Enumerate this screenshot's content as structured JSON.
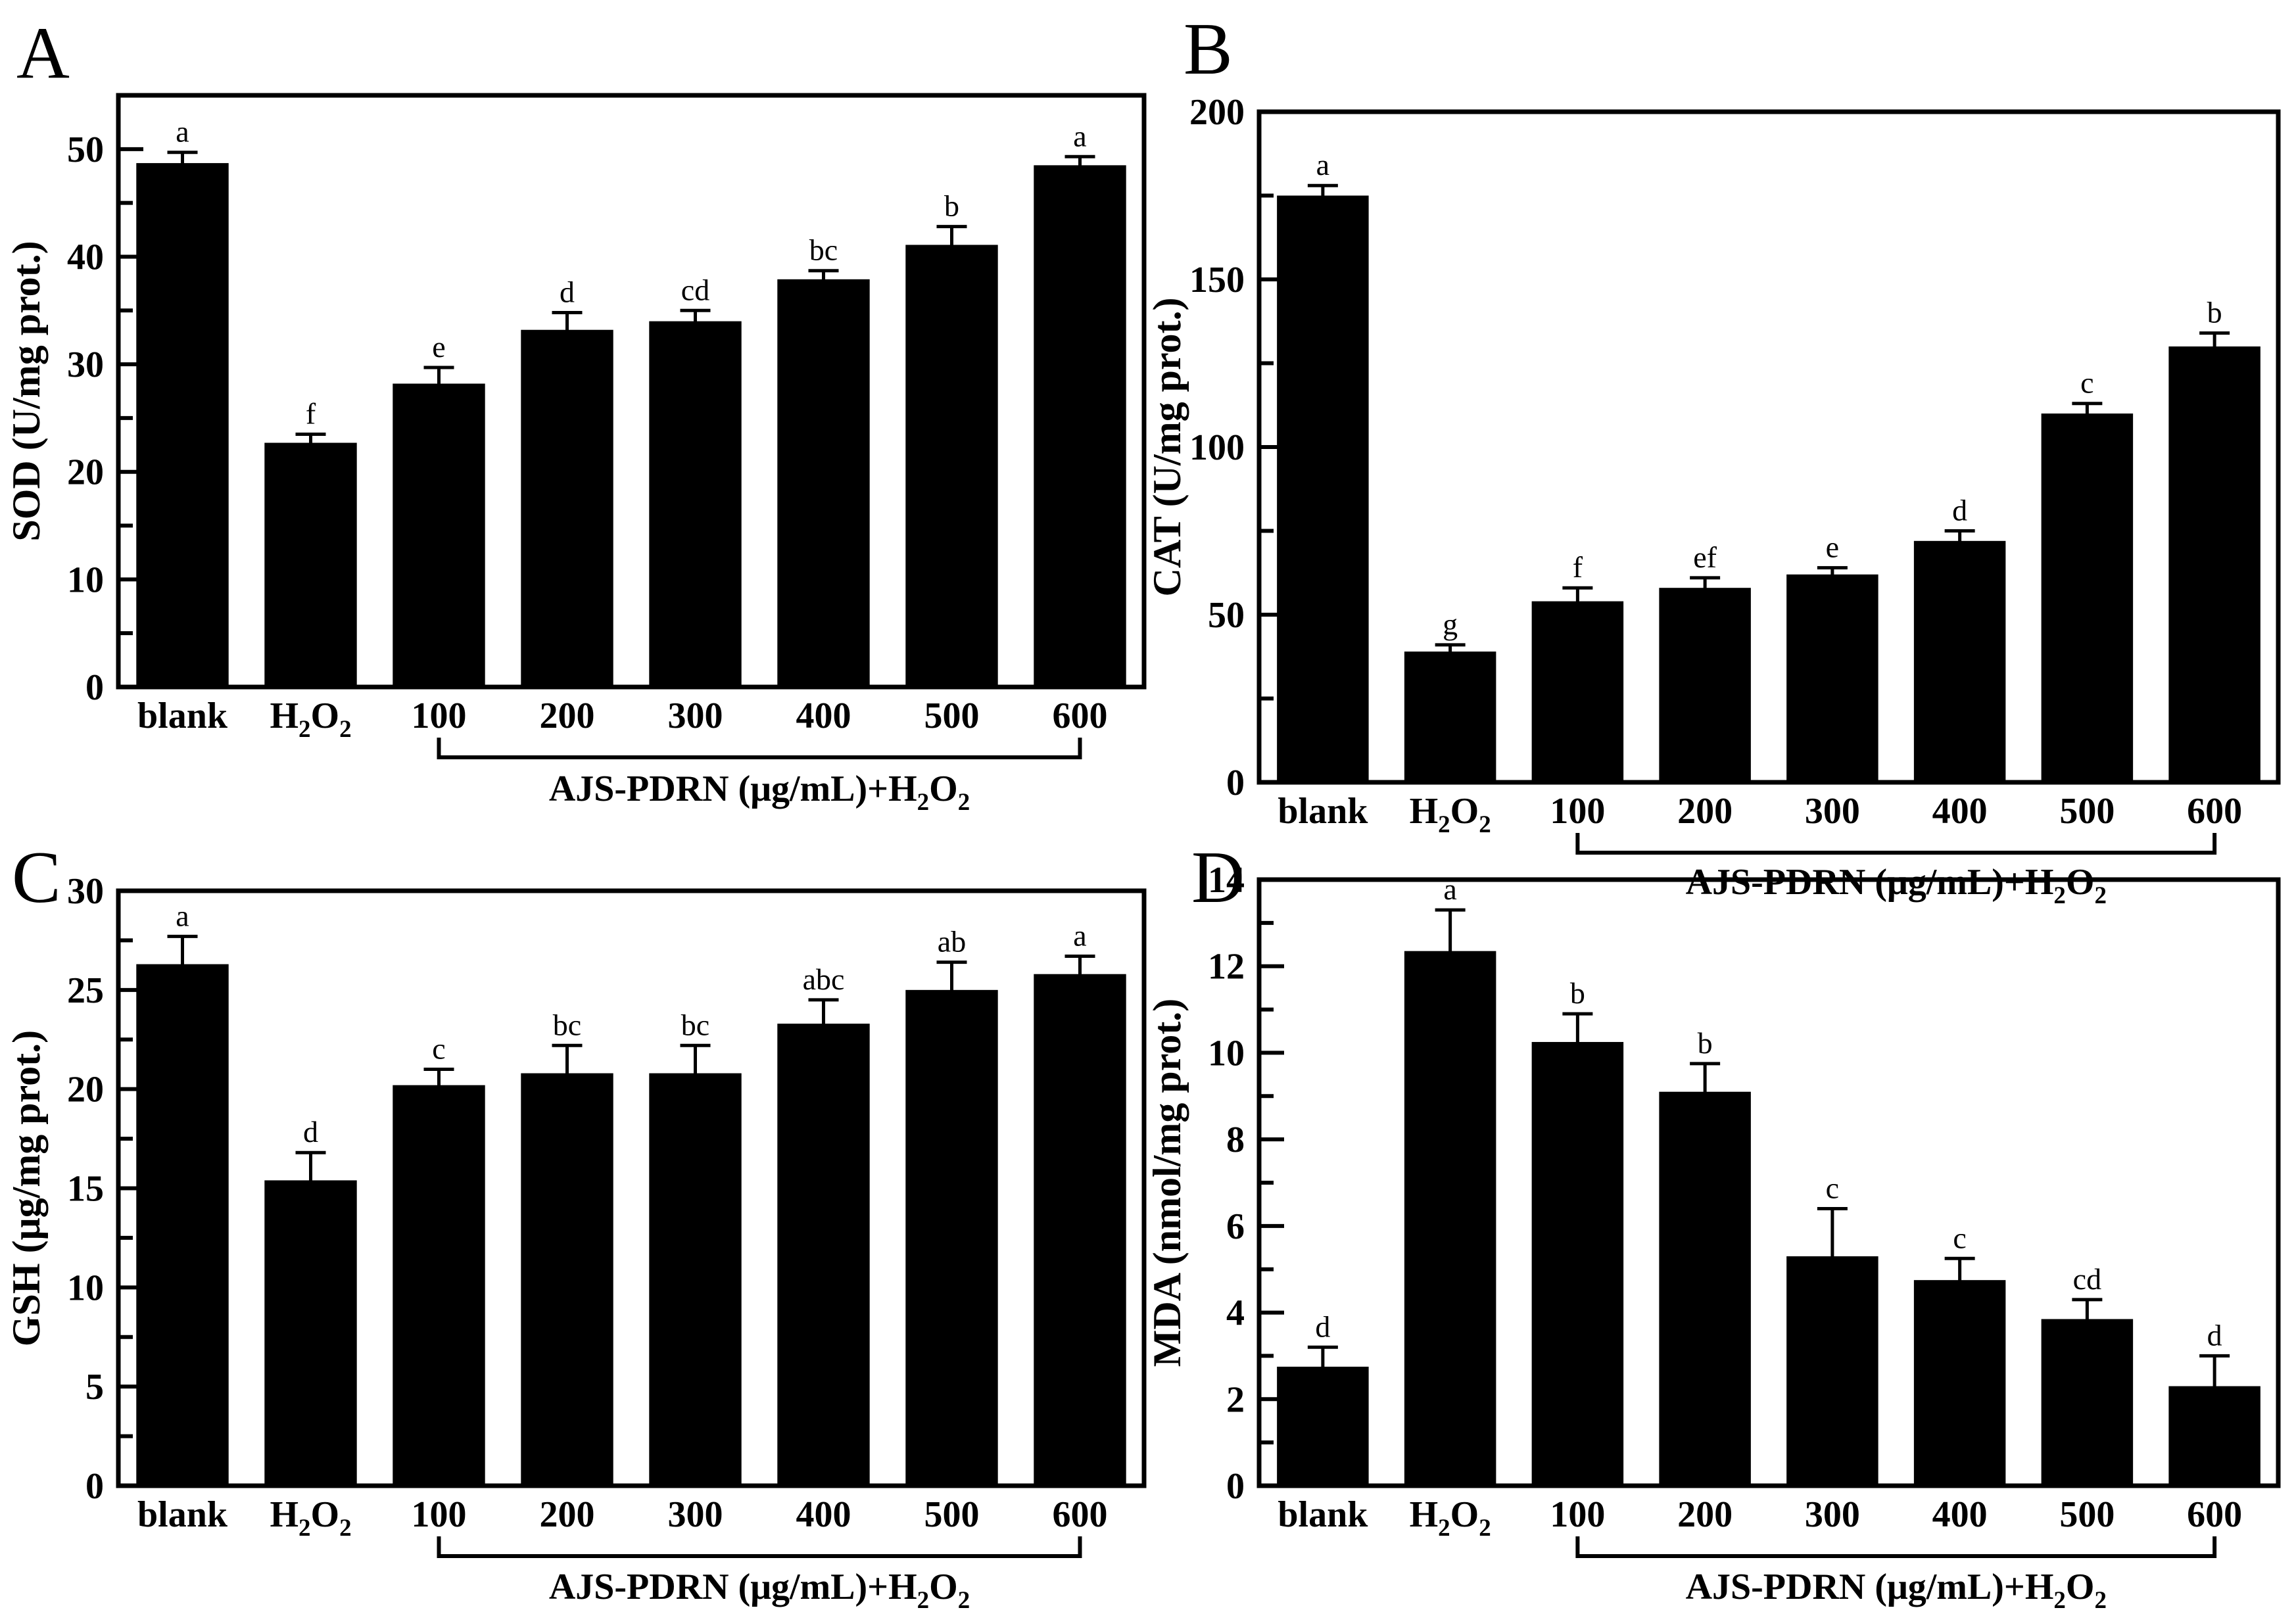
{
  "figure": {
    "background": "#ffffff",
    "ink": "#000000",
    "panel_letters": [
      "A",
      "B",
      "C",
      "D"
    ],
    "group_annotation": {
      "label": "AJS-PDRN (μg/mL)+H2O2",
      "bracket_from": "100",
      "bracket_to": "600"
    }
  },
  "chart_data": [
    {
      "panel": "A",
      "type": "bar",
      "title": "",
      "xlabel": "",
      "ylabel": "SOD (U/mg prot.)",
      "categories": [
        "blank",
        "H2O2",
        "100",
        "200",
        "300",
        "400",
        "500",
        "600"
      ],
      "values": [
        48.7,
        22.7,
        28.2,
        33.2,
        34.0,
        37.9,
        41.1,
        48.5
      ],
      "errors": [
        1.0,
        0.8,
        1.5,
        1.6,
        1.0,
        0.8,
        1.7,
        0.8
      ],
      "letters": [
        "a",
        "f",
        "e",
        "d",
        "cd",
        "bc",
        "b",
        "a"
      ],
      "ylim": [
        0,
        55
      ],
      "ymajor": 10,
      "yminor": 5,
      "ytick_labels": [
        "0",
        "10",
        "20",
        "30",
        "40",
        "50"
      ],
      "bar_color": "#000000",
      "grid": false,
      "legend": null,
      "group_label": "AJS-PDRN (μg/mL)+H2O2",
      "bracket": [
        "100",
        "600"
      ]
    },
    {
      "panel": "B",
      "type": "bar",
      "title": "",
      "xlabel": "",
      "ylabel": "CAT (U/mg prot.)",
      "categories": [
        "blank",
        "H2O2",
        "100",
        "200",
        "300",
        "400",
        "500",
        "600"
      ],
      "values": [
        175,
        39,
        54,
        58,
        62,
        72,
        110,
        130
      ],
      "errors": [
        3,
        2,
        4,
        3,
        2,
        3,
        3,
        4
      ],
      "letters": [
        "a",
        "g",
        "f",
        "ef",
        "e",
        "d",
        "c",
        "b"
      ],
      "ylim": [
        0,
        200
      ],
      "ymajor": 50,
      "yminor": 25,
      "ytick_labels": [
        "0",
        "50",
        "100",
        "150",
        "200"
      ],
      "bar_color": "#000000",
      "grid": false,
      "legend": null,
      "group_label": "AJS-PDRN (μg/mL)+H2O2",
      "bracket": [
        "100",
        "600"
      ]
    },
    {
      "panel": "C",
      "type": "bar",
      "title": "",
      "xlabel": "",
      "ylabel": "GSH (μg/mg prot.)",
      "categories": [
        "blank",
        "H2O2",
        "100",
        "200",
        "300",
        "400",
        "500",
        "600"
      ],
      "values": [
        26.3,
        15.4,
        20.2,
        20.8,
        20.8,
        23.3,
        25.0,
        25.8
      ],
      "errors": [
        1.4,
        1.4,
        0.8,
        1.4,
        1.4,
        1.2,
        1.4,
        0.9
      ],
      "letters": [
        "a",
        "d",
        "c",
        "bc",
        "bc",
        "abc",
        "ab",
        "a"
      ],
      "ylim": [
        0,
        30
      ],
      "ymajor": 5,
      "yminor": 2.5,
      "ytick_labels": [
        "0",
        "5",
        "10",
        "15",
        "20",
        "25",
        "30"
      ],
      "bar_color": "#000000",
      "grid": false,
      "legend": null,
      "group_label": "AJS-PDRN (μg/mL)+H2O2",
      "bracket": [
        "100",
        "600"
      ]
    },
    {
      "panel": "D",
      "type": "bar",
      "title": "",
      "xlabel": "",
      "ylabel": "MDA (nmol/mg prot.)",
      "categories": [
        "blank",
        "H2O2",
        "100",
        "200",
        "300",
        "400",
        "500",
        "600"
      ],
      "values": [
        2.75,
        12.35,
        10.25,
        9.1,
        5.3,
        4.75,
        3.85,
        2.3
      ],
      "errors": [
        0.45,
        0.95,
        0.65,
        0.65,
        1.1,
        0.5,
        0.45,
        0.7
      ],
      "letters": [
        "d",
        "a",
        "b",
        "b",
        "c",
        "c",
        "cd",
        "d"
      ],
      "ylim": [
        0,
        14
      ],
      "ymajor": 2,
      "yminor": 1,
      "ytick_labels": [
        "0",
        "2",
        "4",
        "6",
        "8",
        "10",
        "12",
        "14"
      ],
      "bar_color": "#000000",
      "grid": false,
      "legend": null,
      "group_label": "AJS-PDRN (μg/mL)+H2O2",
      "bracket": [
        "100",
        "600"
      ]
    }
  ]
}
